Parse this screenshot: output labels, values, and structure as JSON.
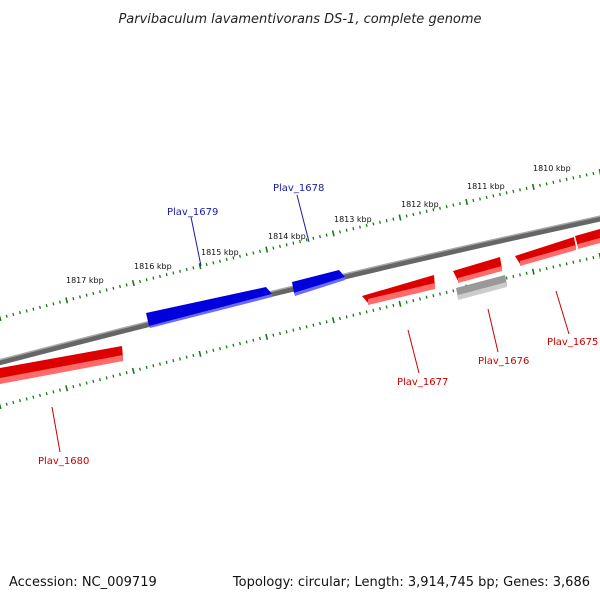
{
  "title": "Parvibaculum lavamentivorans DS-1, complete genome",
  "footer": {
    "accession": "Accession: NC_009719",
    "summary": "Topology: circular; Length: 3,914,745 bp; Genes: 3,686"
  },
  "ruler_labels": [
    "1810 kbp",
    "1811 kbp",
    "1812 kbp",
    "1813 kbp",
    "1814 kbp",
    "1815 kbp",
    "1816 kbp",
    "1817 kbp"
  ],
  "genes": [
    {
      "id": "Plav_1675",
      "label": "Plav_1675",
      "strand": "minus",
      "color": "#dd0000"
    },
    {
      "id": "Plav_1676",
      "label": "Plav_1676",
      "strand": "minus",
      "color": "#aaaaaa"
    },
    {
      "id": "Plav_1677",
      "label": "Plav_1677",
      "strand": "minus",
      "color": "#dd0000"
    },
    {
      "id": "Plav_1678",
      "label": "Plav_1678",
      "strand": "plus",
      "color": "#0000dd"
    },
    {
      "id": "Plav_1679",
      "label": "Plav_1679",
      "strand": "plus",
      "color": "#0000dd"
    },
    {
      "id": "Plav_1680",
      "label": "Plav_1680",
      "strand": "minus",
      "color": "#dd0000"
    }
  ],
  "colors": {
    "plus_strand": "#0000dd",
    "minus_strand": "#dd0000",
    "pseudo": "#aaaaaa",
    "backbone": "#777777",
    "ticks": "#1a7a1a",
    "label_plus": "#1a1aaa",
    "label_minus": "#cc0000"
  }
}
